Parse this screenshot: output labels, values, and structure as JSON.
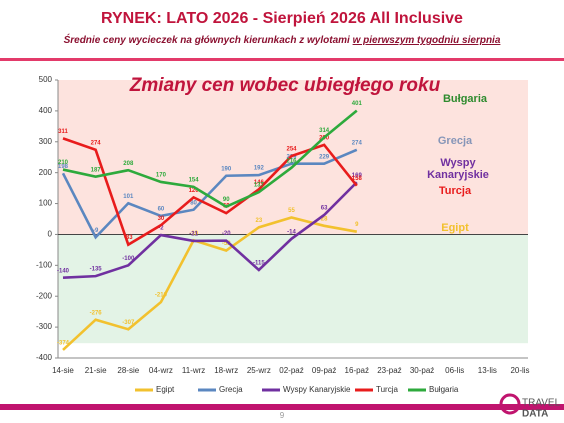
{
  "header": {
    "title": "RYNEK: LATO 2026 - Sierpień 2026 All Inclusive",
    "subtitle": "Średnie ceny wycieczek na głównych kierunkach z wylotami",
    "subtitle_underlined": "w pierwszym tygodniu sierpnia"
  },
  "chart_data": {
    "type": "line",
    "title": "Zmiany cen wobec ubiegłego roku",
    "categories": [
      "14-sie",
      "21-sie",
      "28-sie",
      "04-wrz",
      "11-wrz",
      "18-wrz",
      "25-wrz",
      "02-paź",
      "09-paź",
      "16-paź",
      "23-paź",
      "30-paź",
      "06-lis",
      "13-lis",
      "20-lis"
    ],
    "ylim": [
      -400,
      500
    ],
    "yticks": [
      -400,
      -300,
      -200,
      -100,
      0,
      100,
      200,
      300,
      400,
      500
    ],
    "series": [
      {
        "name": "Egipt",
        "color": "#f2c12e",
        "values": [
          -374,
          -276,
          -307,
          -219,
          -19,
          -52,
          23,
          55,
          28,
          9,
          null,
          null,
          null,
          null,
          null
        ]
      },
      {
        "name": "Grecja",
        "color": "#5b87c0",
        "values": [
          198,
          -9,
          101,
          60,
          80,
          190,
          192,
          229,
          229,
          274,
          null,
          null,
          null,
          null,
          null
        ]
      },
      {
        "name": "Wyspy Kanaryjskie",
        "color": "#7030a0",
        "values": [
          -140,
          -135,
          -100,
          -2,
          -21,
          -20,
          -115,
          -14,
          63,
          169,
          null,
          null,
          null,
          null,
          null
        ]
      },
      {
        "name": "Turcja",
        "color": "#e81c1c",
        "values": [
          311,
          274,
          -33,
          30,
          120,
          69,
          146,
          254,
          290,
          158,
          null,
          null,
          null,
          null,
          null
        ]
      },
      {
        "name": "Bułgaria",
        "color": "#2eaa3c",
        "values": [
          210,
          187,
          208,
          170,
          154,
          90,
          137,
          216,
          314,
          401,
          null,
          null,
          null,
          null,
          null
        ]
      }
    ]
  },
  "footer": {
    "page": "9",
    "logo_top": "TRAVEL",
    "logo_bottom": "DATA"
  }
}
